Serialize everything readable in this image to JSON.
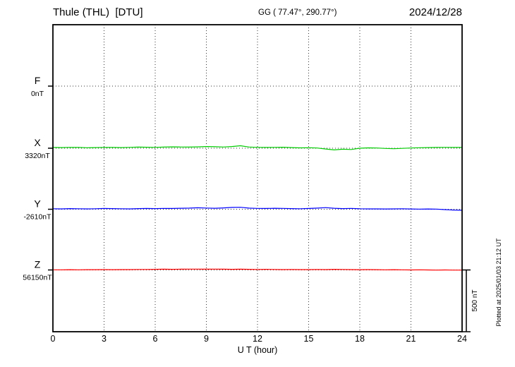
{
  "header": {
    "title": "Thule (THL)  [DTU]",
    "gg": "GG ( 77.47°, 290.77°)",
    "date": "2024/12/28"
  },
  "footer": {
    "plotted_at": "Plotted at 2025/01/03 21:12 UT"
  },
  "chart_data": {
    "type": "line",
    "station": "Thule (THL)",
    "institute": "DTU",
    "date": "2024/12/28",
    "title": "Thule (THL) [DTU] magnetogram",
    "xlabel": "U T (hour)",
    "ylabel": "",
    "x_range": [
      0,
      24
    ],
    "x_ticks": [
      0,
      3,
      6,
      9,
      12,
      15,
      18,
      21,
      24
    ],
    "grid": "dotted vertical at each 3h tick, dotted horizontal at each component baseline",
    "legend_position": "left margin component labels",
    "scale_bar": {
      "label": "500 nT",
      "nT": 500
    },
    "values_unit": "nT deviation from component baseline",
    "sample_hours": [
      0,
      0.5,
      1,
      1.5,
      2,
      2.5,
      3,
      3.5,
      4,
      4.5,
      5,
      5.5,
      6,
      6.5,
      7,
      7.5,
      8,
      8.5,
      9,
      9.5,
      10,
      10.5,
      11,
      11.5,
      12,
      12.5,
      13,
      13.5,
      14,
      14.5,
      15,
      15.5,
      16,
      16.5,
      17,
      17.5,
      18,
      18.5,
      19,
      19.5,
      20,
      20.5,
      21,
      21.5,
      22,
      22.5,
      23,
      23.5,
      24
    ],
    "components": [
      {
        "name": "F",
        "color": "#FFA500",
        "baseline_label": "0nT",
        "baseline_nT": 0,
        "plotted": false,
        "values": []
      },
      {
        "name": "X",
        "color": "#00CC00",
        "baseline_label": "3320nT",
        "baseline_nT": 3320,
        "plotted": true,
        "values": [
          6,
          5,
          7,
          6,
          4,
          5,
          7,
          6,
          5,
          7,
          9,
          8,
          7,
          9,
          11,
          10,
          9,
          11,
          14,
          12,
          10,
          14,
          20,
          10,
          7,
          6,
          7,
          8,
          5,
          3,
          4,
          2,
          -6,
          -14,
          -8,
          -10,
          0,
          3,
          2,
          -2,
          -4,
          -1,
          2,
          4,
          5,
          6,
          7,
          6,
          6
        ]
      },
      {
        "name": "Y",
        "color": "#0000FF",
        "baseline_label": "-2610nT",
        "baseline_nT": -2610,
        "plotted": true,
        "values": [
          4,
          3,
          5,
          4,
          3,
          4,
          6,
          5,
          4,
          3,
          5,
          6,
          5,
          7,
          6,
          8,
          9,
          12,
          10,
          8,
          11,
          15,
          16,
          9,
          7,
          6,
          8,
          7,
          5,
          4,
          6,
          9,
          13,
          8,
          5,
          7,
          4,
          3,
          3,
          2,
          3,
          4,
          2,
          1,
          2,
          1,
          -3,
          -6,
          -8
        ]
      },
      {
        "name": "Z",
        "color": "#FF0000",
        "baseline_label": "56150nT",
        "baseline_nT": 56150,
        "plotted": true,
        "values": [
          1,
          1,
          2,
          1,
          2,
          2,
          3,
          2,
          3,
          3,
          4,
          4,
          5,
          6,
          5,
          6,
          7,
          7,
          6,
          7,
          6,
          5,
          6,
          5,
          4,
          5,
          4,
          3,
          4,
          3,
          3,
          4,
          3,
          5,
          4,
          3,
          2,
          3,
          2,
          1,
          2,
          1,
          0,
          1,
          0,
          -1,
          0,
          -1,
          -1
        ]
      }
    ]
  }
}
